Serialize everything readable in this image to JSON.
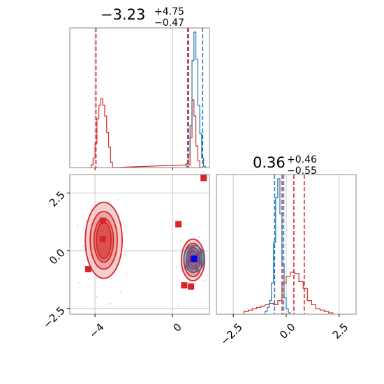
{
  "chart_data": [
    {
      "panel": "top-left",
      "type": "histogram",
      "title": {
        "value": "−3.23",
        "upper": "+4.75",
        "lower": "−0.47"
      },
      "xlim": [
        -5.3,
        1.9
      ],
      "grid": true,
      "series": [
        {
          "color": "#d62728",
          "name": "",
          "bins": [
            {
              "x0": -4.3,
              "x1": -4.2,
              "h": 0.0
            },
            {
              "x0": -4.2,
              "x1": -4.1,
              "h": 0.02
            },
            {
              "x0": -4.1,
              "x1": -4.0,
              "h": 0.07
            },
            {
              "x0": -4.0,
              "x1": -3.9,
              "h": 0.18
            },
            {
              "x0": -3.9,
              "x1": -3.8,
              "h": 0.36
            },
            {
              "x0": -3.8,
              "x1": -3.7,
              "h": 0.46
            },
            {
              "x0": -3.7,
              "x1": -3.6,
              "h": 0.51
            },
            {
              "x0": -3.6,
              "x1": -3.5,
              "h": 0.46
            },
            {
              "x0": -3.5,
              "x1": -3.4,
              "h": 0.38
            },
            {
              "x0": -3.4,
              "x1": -3.3,
              "h": 0.26
            },
            {
              "x0": -3.3,
              "x1": -3.2,
              "h": 0.15
            },
            {
              "x0": -3.2,
              "x1": -3.1,
              "h": 0.04
            },
            {
              "x0": -3.1,
              "x1": -3.0,
              "h": 0.0
            },
            {
              "x0": 0.8,
              "x1": 0.9,
              "h": 0.02
            },
            {
              "x0": 0.9,
              "x1": 1.0,
              "h": 0.22
            },
            {
              "x0": 1.0,
              "x1": 1.1,
              "h": 0.5
            },
            {
              "x0": 1.1,
              "x1": 1.2,
              "h": 0.38
            },
            {
              "x0": 1.2,
              "x1": 1.3,
              "h": 0.16
            },
            {
              "x0": 1.3,
              "x1": 1.4,
              "h": 0.05
            },
            {
              "x0": 1.4,
              "x1": 1.5,
              "h": 0.0
            }
          ],
          "quantile_lines": [
            -3.95,
            0.78
          ]
        },
        {
          "color": "#1f77b4",
          "name": "",
          "bins": [
            {
              "x0": 0.7,
              "x1": 0.8,
              "h": 0.03
            },
            {
              "x0": 0.8,
              "x1": 0.9,
              "h": 0.1
            },
            {
              "x0": 0.9,
              "x1": 1.0,
              "h": 0.31
            },
            {
              "x0": 1.0,
              "x1": 1.1,
              "h": 0.79
            },
            {
              "x0": 1.1,
              "x1": 1.2,
              "h": 1.0
            },
            {
              "x0": 1.2,
              "x1": 1.3,
              "h": 0.8
            },
            {
              "x0": 1.3,
              "x1": 1.4,
              "h": 0.46
            },
            {
              "x0": 1.4,
              "x1": 1.5,
              "h": 0.25
            },
            {
              "x0": 1.5,
              "x1": 1.6,
              "h": 0.07
            },
            {
              "x0": 1.6,
              "x1": 1.7,
              "h": 0.01
            }
          ],
          "quantile_lines": [
            0.8,
            1.55
          ]
        }
      ],
      "red_median_line": 0.82
    },
    {
      "panel": "bottom-left",
      "type": "scatter",
      "xlim": [
        -5.3,
        1.9
      ],
      "ylim": [
        -2.75,
        3.3
      ],
      "xticks": [
        -4,
        0
      ],
      "xtick_labels": [
        "−4",
        "0"
      ],
      "yticks": [
        -2.5,
        0,
        2.5
      ],
      "ytick_labels": [
        "−2.5",
        "0.0",
        "2.5"
      ],
      "grid": true,
      "red_contours": [
        {
          "cx": -3.55,
          "cy": 0.45,
          "rx": [
            0.95,
            0.7,
            0.5,
            0.38
          ],
          "ry": [
            1.65,
            1.25,
            0.95,
            0.8
          ]
        },
        {
          "cx": 1.05,
          "cy": -0.4,
          "rx": [
            0.6,
            0.47,
            0.35,
            0.25
          ],
          "ry": [
            0.9,
            0.72,
            0.55,
            0.42
          ]
        }
      ],
      "blue_contours": [
        {
          "cx": 1.1,
          "cy": -0.35,
          "rx": [
            0.52,
            0.38,
            0.25,
            0.15
          ],
          "ry": [
            0.58,
            0.45,
            0.32,
            0.18
          ]
        }
      ],
      "red_squares": [
        {
          "x": 1.6,
          "y": 3.15
        },
        {
          "x": 0.3,
          "y": 1.15
        },
        {
          "x": -3.6,
          "y": 1.3
        },
        {
          "x": -3.6,
          "y": 0.5
        },
        {
          "x": -4.35,
          "y": -0.8
        },
        {
          "x": 0.6,
          "y": -1.5
        },
        {
          "x": 0.95,
          "y": -1.55
        },
        {
          "x": 1.05,
          "y": -0.35
        }
      ],
      "blue_square": {
        "x": 1.1,
        "y": -0.35
      }
    },
    {
      "panel": "bottom-right",
      "type": "histogram",
      "title": {
        "value": "0.36",
        "upper": "+0.46",
        "lower": "−0.55"
      },
      "xlim": [
        -3.3,
        3.3
      ],
      "xticks": [
        -2.5,
        0,
        2.5
      ],
      "xtick_labels": [
        "−2.5",
        "0.0",
        "2.5"
      ],
      "grid": true,
      "series": [
        {
          "color": "#d62728",
          "name": "",
          "bins": [
            {
              "x0": -2.0,
              "x1": -1.8,
              "h": 0.02
            },
            {
              "x0": -1.8,
              "x1": -1.6,
              "h": 0.03
            },
            {
              "x0": -1.6,
              "x1": -1.4,
              "h": 0.04
            },
            {
              "x0": -1.4,
              "x1": -1.2,
              "h": 0.05
            },
            {
              "x0": -1.2,
              "x1": -1.0,
              "h": 0.06
            },
            {
              "x0": -1.0,
              "x1": -0.8,
              "h": 0.07
            },
            {
              "x0": -0.8,
              "x1": -0.6,
              "h": 0.08
            },
            {
              "x0": -0.6,
              "x1": -0.4,
              "h": 0.07
            },
            {
              "x0": -0.4,
              "x1": -0.2,
              "h": 0.1
            },
            {
              "x0": -0.2,
              "x1": 0.0,
              "h": 0.23
            },
            {
              "x0": 0.0,
              "x1": 0.2,
              "h": 0.28
            },
            {
              "x0": 0.2,
              "x1": 0.4,
              "h": 0.31
            },
            {
              "x0": 0.4,
              "x1": 0.6,
              "h": 0.3
            },
            {
              "x0": 0.6,
              "x1": 0.8,
              "h": 0.24
            },
            {
              "x0": 0.8,
              "x1": 1.0,
              "h": 0.19
            },
            {
              "x0": 1.0,
              "x1": 1.2,
              "h": 0.1
            },
            {
              "x0": 1.2,
              "x1": 1.4,
              "h": 0.07
            },
            {
              "x0": 1.4,
              "x1": 1.6,
              "h": 0.04
            },
            {
              "x0": 1.6,
              "x1": 1.8,
              "h": 0.03
            },
            {
              "x0": 1.8,
              "x1": 2.0,
              "h": 0.02
            },
            {
              "x0": 2.0,
              "x1": 2.2,
              "h": 0.01
            }
          ],
          "quantile_lines": [
            -0.2,
            0.36,
            0.85
          ]
        },
        {
          "color": "#1f77b4",
          "name": "",
          "bins": [
            {
              "x0": -1.0,
              "x1": -0.9,
              "h": 0.02
            },
            {
              "x0": -0.9,
              "x1": -0.8,
              "h": 0.05
            },
            {
              "x0": -0.8,
              "x1": -0.7,
              "h": 0.1
            },
            {
              "x0": -0.7,
              "x1": -0.6,
              "h": 0.23
            },
            {
              "x0": -0.6,
              "x1": -0.5,
              "h": 0.53
            },
            {
              "x0": -0.5,
              "x1": -0.4,
              "h": 0.86
            },
            {
              "x0": -0.4,
              "x1": -0.3,
              "h": 1.0
            },
            {
              "x0": -0.3,
              "x1": -0.2,
              "h": 0.74
            },
            {
              "x0": -0.2,
              "x1": -0.1,
              "h": 0.37
            },
            {
              "x0": -0.1,
              "x1": 0.0,
              "h": 0.12
            },
            {
              "x0": 0.0,
              "x1": 0.1,
              "h": 0.04
            },
            {
              "x0": 0.1,
              "x1": 0.2,
              "h": 0.01
            }
          ],
          "quantile_lines": [
            -0.55,
            -0.12
          ]
        }
      ]
    }
  ],
  "colors": {
    "red": "#d62728",
    "blue": "#1f77b4",
    "red_fill": "#e8a0a0",
    "grid": "#c8c8c8",
    "spine": "#888888"
  }
}
